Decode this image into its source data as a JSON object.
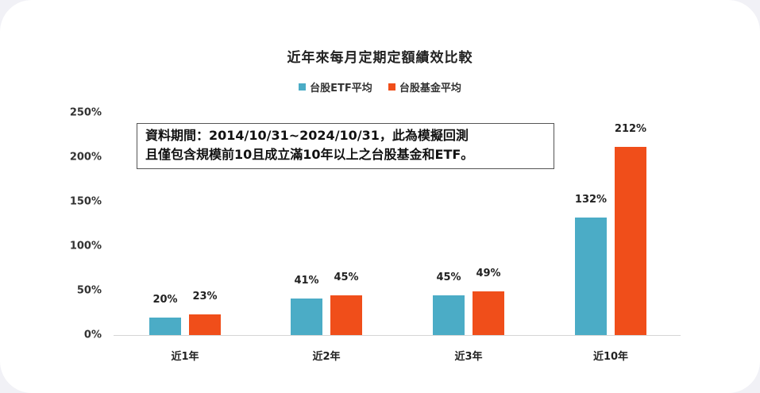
{
  "chart_data": {
    "type": "bar",
    "title": "近年來每月定期定額績效比較",
    "categories": [
      "近1年",
      "近2年",
      "近3年",
      "近10年"
    ],
    "series": [
      {
        "name": "台股ETF平均",
        "color": "#4bacc6",
        "values": [
          20,
          41,
          45,
          132
        ]
      },
      {
        "name": "台股基金平均",
        "color": "#f04e1a",
        "values": [
          23,
          45,
          49,
          212
        ]
      }
    ],
    "value_labels": [
      [
        "20%",
        "41%",
        "45%",
        "132%"
      ],
      [
        "23%",
        "45%",
        "49%",
        "212%"
      ]
    ],
    "xlabel": "",
    "ylabel": "",
    "ylim": [
      0,
      250
    ],
    "yticks": [
      "0%",
      "50%",
      "100%",
      "150%",
      "200%",
      "250%"
    ],
    "legend_position": "top",
    "grid": false,
    "annotation": {
      "line1": "資料期間：2014/10/31~2024/10/31，此為模擬回測",
      "line2": "且僅包含規模前10且成立滿10年以上之台股基金和ETF。"
    }
  }
}
